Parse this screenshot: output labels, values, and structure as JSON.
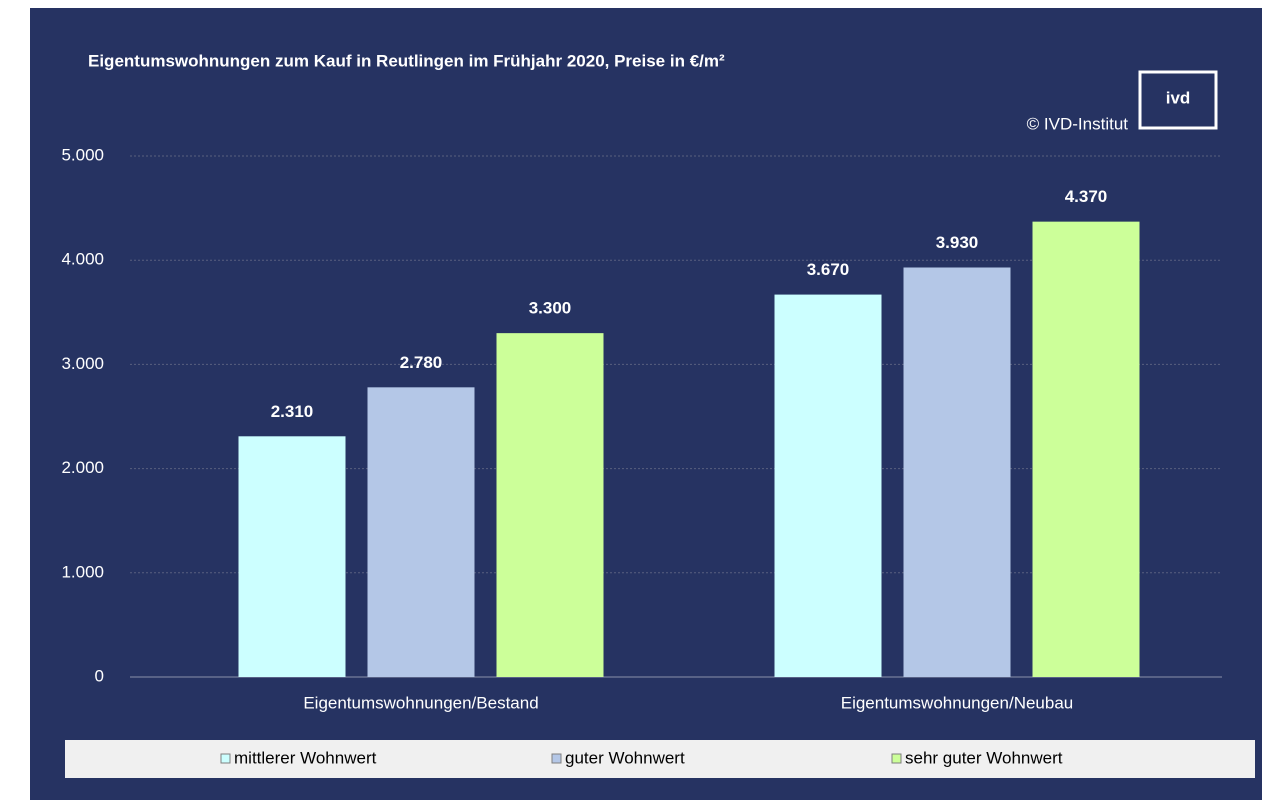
{
  "chart_data": {
    "type": "bar",
    "title": "Eigentumswohnungen zum Kauf in Reutlingen im Frühjahr 2020, Preise in €/m²",
    "annotations": [
      "© IVD-Institut"
    ],
    "logo": "ivd",
    "categories": [
      "Eigentumswohnungen/Bestand",
      "Eigentumswohnungen/Neubau"
    ],
    "series": [
      {
        "name": "mittlerer Wohnwert",
        "color": "#ccffff",
        "values": [
          2310,
          3670
        ],
        "value_labels": [
          "2.310",
          "3.670"
        ]
      },
      {
        "name": "guter Wohnwert",
        "color": "#b4c7e7",
        "values": [
          2780,
          3930
        ],
        "value_labels": [
          "2.780",
          "3.930"
        ]
      },
      {
        "name": "sehr guter Wohnwert",
        "color": "#ccff99",
        "values": [
          3300,
          4370
        ],
        "value_labels": [
          "3.300",
          "4.370"
        ]
      }
    ],
    "ylim": [
      0,
      5000
    ],
    "yticks": [
      0,
      {
        "value": 1000,
        "label": "1.000"
      },
      {
        "value": 2000,
        "label": "2.000"
      },
      {
        "value": 3000,
        "label": "3.000"
      },
      {
        "value": 4000,
        "label": "4.000"
      },
      {
        "value": 5000,
        "label": "5.000"
      }
    ],
    "grid": true,
    "legend": "bottom"
  }
}
